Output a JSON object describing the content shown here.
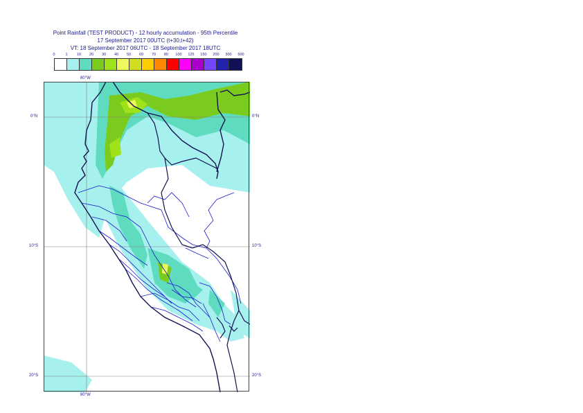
{
  "title": {
    "line1": "Point Rainfall (TEST PRODUCT) - 12 hourly accumulation - 95th Percentile",
    "line2": "17 September 2017 00UTC (t+30,t+42)",
    "line3": "VT: 18 September 2017 06UTC - 18 September 2017 18UTC"
  },
  "legend": {
    "thresholds": [
      "0",
      "1",
      "10",
      "20",
      "30",
      "40",
      "50",
      "60",
      "70",
      "80",
      "100",
      "125",
      "150",
      "200",
      "300",
      "500"
    ],
    "colors": [
      "#ffffff",
      "#a6f0ee",
      "#5fdcc0",
      "#7acb1e",
      "#9fe21a",
      "#eef75c",
      "#d2dd22",
      "#ffcc00",
      "#ff8800",
      "#ff0000",
      "#ff00ff",
      "#aa00cc",
      "#7744ff",
      "#2222aa",
      "#111155"
    ]
  },
  "axes": {
    "top_lon": "80°W",
    "bottom_lon": "80°W",
    "lat_left": [
      "0°N",
      "10°S",
      "20°S"
    ],
    "lat_right": [
      "0°N",
      "10°S",
      "20°S"
    ]
  },
  "map": {
    "ocean_color": "#ffffff",
    "grid_color": "#808080",
    "coast_color": "#101050",
    "border_color": "#1a1acc"
  }
}
